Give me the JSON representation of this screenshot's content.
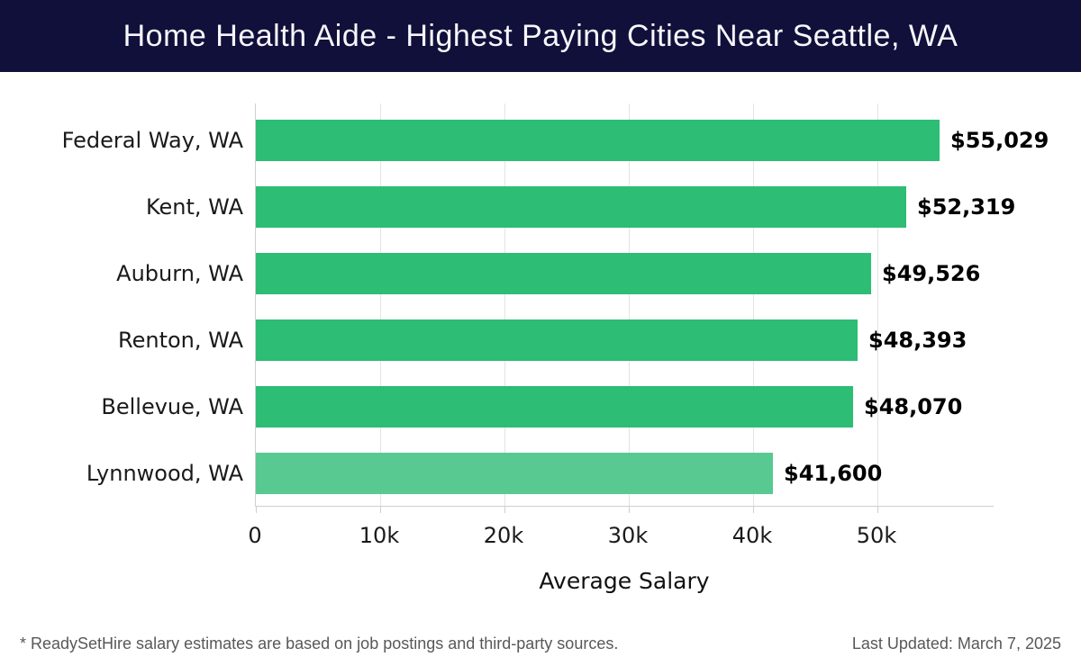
{
  "header": {
    "title": "Home Health Aide - Highest Paying Cities Near Seattle, WA"
  },
  "chart_data": {
    "type": "bar",
    "orientation": "horizontal",
    "title": "Home Health Aide - Highest Paying Cities Near Seattle, WA",
    "categories": [
      "Federal Way, WA",
      "Kent, WA",
      "Auburn, WA",
      "Renton, WA",
      "Bellevue, WA",
      "Lynnwood, WA"
    ],
    "values": [
      55029,
      52319,
      49526,
      48393,
      48070,
      41600
    ],
    "value_labels": [
      "$55,029",
      "$52,319",
      "$49,526",
      "$48,393",
      "$48,070",
      "$41,600"
    ],
    "bar_colors": [
      "#2dbd74",
      "#2dbd74",
      "#2dbd74",
      "#2dbd74",
      "#2dbd74",
      "#57c991"
    ],
    "xlabel": "Average Salary",
    "ylabel": "",
    "x_ticks": [
      "0",
      "10k",
      "20k",
      "30k",
      "40k",
      "50k"
    ],
    "x_tick_values": [
      0,
      10000,
      20000,
      30000,
      40000,
      50000
    ],
    "xlim": [
      0,
      59000
    ],
    "grid": "vertical",
    "legend": "none"
  },
  "footer": {
    "disclaimer": "* ReadySetHire salary estimates are based on job postings and third-party sources.",
    "last_updated": "Last Updated: March 7, 2025"
  },
  "colors": {
    "header_bg": "#11103a",
    "bar_green": "#2dbd74",
    "bar_green_light": "#57c991",
    "gridline": "#e4e4e4",
    "axis": "#cfcfcf",
    "label_text": "#1a1a1a",
    "value_text": "#000000",
    "footer_text": "#58585a"
  }
}
